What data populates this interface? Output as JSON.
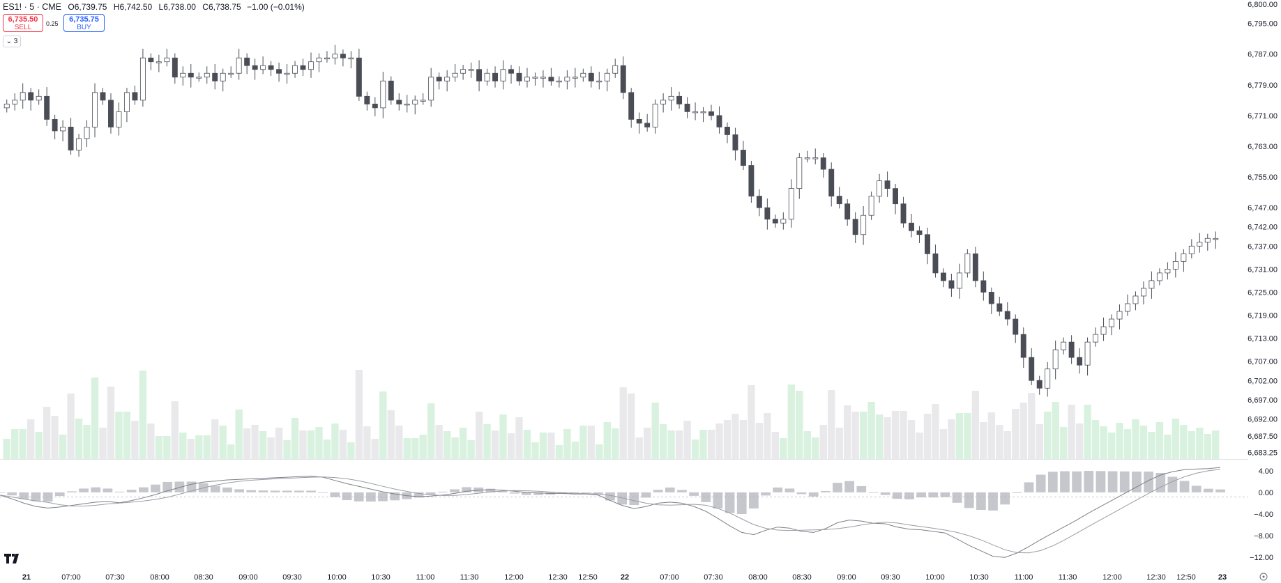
{
  "header": {
    "symbol": "ES1! · 5 · CME",
    "open_label": "O",
    "open_value": "6,739.75",
    "high_label": "H",
    "high_value": "6,742.50",
    "low_label": "L",
    "low_value": "6,738.00",
    "close_label": "C",
    "close_value": "6,738.75",
    "change": "−1.00 (−0.01%)"
  },
  "trade": {
    "sell_price": "6,735.50",
    "sell_label": "SELL",
    "spread": "0.25",
    "buy_price": "6,735.75",
    "buy_label": "BUY"
  },
  "collapse_count": "3",
  "colors": {
    "up_body": "#ffffff",
    "down_body": "#4a4d56",
    "wick": "#4a4d56",
    "vol_up": "#d9f1df",
    "vol_down": "#e9e9eb",
    "macd": "#7d7f86",
    "hist": "#c5c7cc"
  },
  "chart_data": [
    {
      "type": "candlestick",
      "title": "",
      "y_ticks": [
        "6,800.00",
        "6,795.00",
        "6,787.00",
        "6,779.00",
        "6,771.00",
        "6,763.00",
        "6,755.00",
        "6,747.00",
        "6,742.00",
        "6,737.00",
        "6,731.00",
        "6,725.00",
        "6,719.00",
        "6,713.00",
        "6,707.00",
        "6,702.00",
        "6,697.00",
        "6,692.00",
        "6,687.50",
        "6,683.25"
      ],
      "ylim": [
        6683,
        6800
      ],
      "x_ticks": [
        "21",
        "07:00",
        "07:30",
        "08:00",
        "08:30",
        "09:00",
        "09:30",
        "10:00",
        "10:30",
        "11:00",
        "11:30",
        "12:00",
        "12:30",
        "12:50",
        "22",
        "07:00",
        "07:30",
        "08:00",
        "08:30",
        "09:00",
        "09:30",
        "10:00",
        "10:30",
        "11:00",
        "11:30",
        "12:00",
        "12:30",
        "12:50",
        "23"
      ],
      "close": [
        6774,
        6775,
        6777,
        6775,
        6776,
        6770,
        6767,
        6768,
        6762,
        6765,
        6768,
        6777,
        6775,
        6768,
        6772,
        6777,
        6775,
        6786,
        6785,
        6785,
        6786,
        6781,
        6782,
        6781,
        6781,
        6782,
        6780,
        6782,
        6782,
        6786,
        6784,
        6783,
        6784,
        6783,
        6782,
        6782,
        6784,
        6783,
        6785,
        6786,
        6786,
        6787,
        6786,
        6786,
        6776,
        6774,
        6773,
        6780,
        6775,
        6774,
        6774,
        6775,
        6775,
        6781,
        6780,
        6781,
        6782,
        6783,
        6783,
        6780,
        6782,
        6780,
        6783,
        6782,
        6780,
        6781,
        6781,
        6781,
        6780,
        6780,
        6781,
        6781,
        6782,
        6780,
        6780,
        6782,
        6784,
        6777,
        6770,
        6769,
        6768,
        6774,
        6775,
        6776,
        6774,
        6772,
        6772,
        6772,
        6771,
        6768,
        6766,
        6762,
        6758,
        6750,
        6747,
        6744,
        6743,
        6744,
        6752,
        6760,
        6760,
        6760,
        6757,
        6750,
        6748,
        6744,
        6740,
        6745,
        6750,
        6754,
        6752,
        6748,
        6743,
        6741,
        6740,
        6735,
        6730,
        6728,
        6726,
        6730,
        6735,
        6728,
        6725,
        6722,
        6720,
        6718,
        6714,
        6708,
        6702,
        6700,
        6705,
        6710,
        6712,
        6708,
        6706,
        6712,
        6714,
        6716,
        6718,
        6720,
        6722,
        6724,
        6726,
        6728,
        6730,
        6731,
        6733,
        6735,
        6737,
        6738,
        6739,
        6739
      ]
    },
    {
      "type": "line",
      "title": "",
      "y_ticks": [
        "4.00",
        "0.00",
        "−4.00",
        "−8.00",
        "−12.00"
      ],
      "ylim": [
        -13,
        5
      ],
      "macd": [
        -0.5,
        -1.2,
        -2.0,
        -2.6,
        -2.9,
        -2.7,
        -2.4,
        -2.1,
        -1.8,
        -1.7,
        -1.9,
        -1.5,
        -1.0,
        -0.4,
        0.3,
        0.9,
        1.5,
        1.9,
        2.1,
        2.3,
        2.4,
        2.5,
        2.6,
        2.7,
        2.8,
        2.9,
        3.0,
        2.8,
        2.2,
        1.6,
        1.1,
        0.6,
        0.1,
        -0.3,
        -0.6,
        -0.8,
        -0.7,
        -0.5,
        -0.2,
        0.2,
        0.4,
        0.5,
        0.4,
        0.2,
        0.0,
        -0.1,
        -0.2,
        -0.2,
        -0.3,
        -0.3,
        -0.5,
        -1.5,
        -2.4,
        -3.0,
        -2.6,
        -2.0,
        -1.8,
        -2.0,
        -2.6,
        -3.5,
        -4.8,
        -6.2,
        -7.4,
        -7.8,
        -7.0,
        -6.4,
        -6.6,
        -7.2,
        -7.4,
        -6.7,
        -5.6,
        -5.1,
        -5.3,
        -5.7,
        -5.8,
        -6.4,
        -6.8,
        -6.9,
        -7.2,
        -7.5,
        -8.6,
        -9.8,
        -10.8,
        -11.8,
        -12.0,
        -11.2,
        -10.0,
        -8.7,
        -7.5,
        -6.3,
        -5.1,
        -3.8,
        -2.6,
        -1.4,
        -0.2,
        1.0,
        2.2,
        3.2,
        3.8,
        4.2,
        4.3,
        4.4,
        4.6
      ]
    }
  ]
}
